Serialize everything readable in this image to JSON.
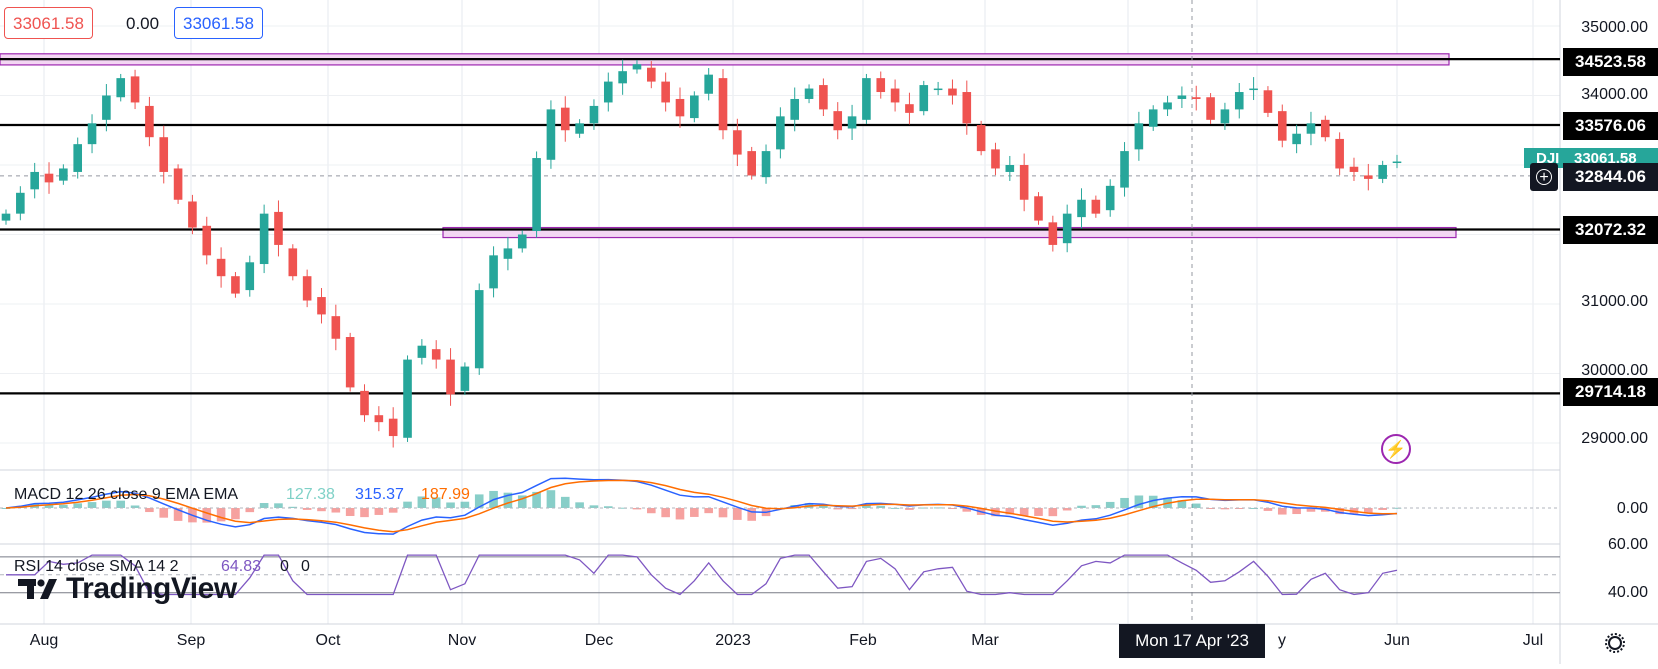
{
  "ohlc": {
    "open": "33061.58",
    "change": "0.00",
    "close": "33061.58"
  },
  "price_axis": {
    "ticks": [
      "35000.00",
      "34000.00",
      "31000.00",
      "30000.00",
      "29000.00"
    ],
    "levels": [
      "34523.58",
      "33576.06",
      "32072.32",
      "29714.18"
    ],
    "current": "32844.06",
    "last_partial": "33061.58",
    "last_tag": "DJI"
  },
  "macd": {
    "label": "MACD 12 26 close 9 EMA EMA",
    "hist": "127.38",
    "macd": "315.37",
    "signal": "187.99",
    "axis": "0.00"
  },
  "rsi": {
    "label": "RSI 14 close SMA 14 2",
    "value": "64.83",
    "ma": "0",
    "extra": "0",
    "axis_top": "60.00",
    "axis_low": "40.00"
  },
  "time_axis": {
    "ticks": [
      {
        "label": "Aug",
        "date": "2022-08"
      },
      {
        "label": "Sep",
        "date": "2022-09"
      },
      {
        "label": "Oct",
        "date": "2022-10"
      },
      {
        "label": "Nov",
        "date": "2022-11"
      },
      {
        "label": "Dec",
        "date": "2022-12"
      },
      {
        "label": "2023",
        "date": "2023-01"
      },
      {
        "label": "Feb",
        "date": "2023-02"
      },
      {
        "label": "Mar",
        "date": "2023-03"
      },
      {
        "label": "Jun",
        "date": "2023-06"
      },
      {
        "label": "Jul",
        "date": "2023-07"
      }
    ],
    "crosshair": "Mon 17 Apr '23",
    "crosshair_tail": "y"
  },
  "brand": "TradingView",
  "colors": {
    "up": "#26a69a",
    "down": "#ef5350",
    "zone_fill": "#f3d6f3",
    "zone_border": "#9c27b0",
    "macd_line": "#2962ff",
    "signal_line": "#ff6d00",
    "rsi_line": "#7e57c2"
  },
  "chart_data": {
    "type": "candlestick",
    "ylim": [
      28500,
      35200
    ],
    "horizontal_levels": [
      34523.58,
      33576.06,
      32072.32,
      29714.18
    ],
    "zones": [
      [
        34440,
        34600
      ],
      [
        32000,
        32100
      ]
    ],
    "series": [
      {
        "name": "Close",
        "values": [
          32300,
          32600,
          32900,
          32750,
          32950,
          33300,
          33600,
          34000,
          34250,
          33900,
          33400,
          32900,
          32500,
          32100,
          31700,
          31400,
          31150,
          31600,
          32300,
          31850,
          31400,
          31050,
          30850,
          30500,
          29800,
          29400,
          29300,
          29100,
          30200,
          30400,
          30200,
          29700,
          30100,
          31200,
          31700,
          31800,
          32000,
          33100,
          33800,
          33500,
          33600,
          33850,
          34200,
          34350,
          34450,
          34200,
          33900,
          33700,
          34000,
          34300,
          33500,
          33150,
          32850,
          33200,
          33700,
          33950,
          34100,
          33800,
          33500,
          33700,
          34250,
          34050,
          33900,
          33750,
          34150,
          34100,
          34000,
          33600,
          33200,
          32950,
          33000,
          32500,
          32200,
          31850,
          32300,
          32500,
          32300,
          32700,
          33200,
          33600,
          33800,
          33900,
          34000,
          33950,
          33650,
          33800,
          34050,
          34100,
          33750,
          33350,
          33450,
          33600,
          33400,
          32950,
          32900,
          32800,
          33000,
          33050
        ]
      }
    ]
  }
}
